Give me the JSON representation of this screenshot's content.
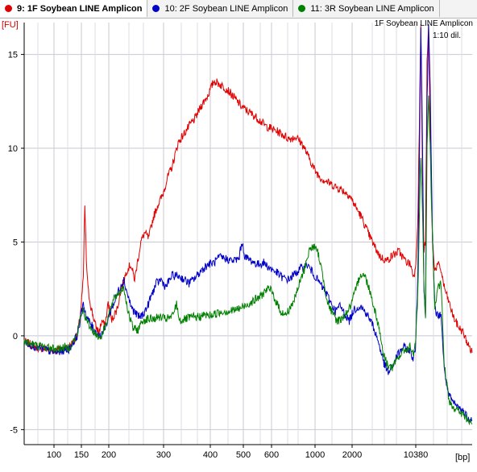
{
  "tabs": [
    {
      "label": "9: 1F Soybean LINE Amplicon",
      "color": "#e00000"
    },
    {
      "label": "10: 2F Soybean LINE Amplicon",
      "color": "#0000c8"
    },
    {
      "label": "11: 3R Soybean LINE Amplicon",
      "color": "#008000"
    }
  ],
  "chart_data": {
    "type": "line",
    "ylabel": "[FU]",
    "xlabel": "[bp]",
    "annotation": [
      "1F Soybean LINE Amplicon",
      "1:10 dil."
    ],
    "ylim": [
      -5.8,
      16.7
    ],
    "y_ticks": [
      15,
      10,
      5,
      0,
      -5
    ],
    "x_tick_labels": [
      "100",
      "150",
      "200",
      "300",
      "400",
      "500",
      "600",
      "1000",
      "2000",
      "10380"
    ],
    "grid": true,
    "series": [
      {
        "name": "9: 1F Soybean LINE Amplicon",
        "color": "#e00000",
        "points": [
          [
            0,
            -0.3
          ],
          [
            15,
            -0.6
          ],
          [
            40,
            -0.8
          ],
          [
            58,
            -0.6
          ],
          [
            68,
            0
          ],
          [
            72,
            1
          ],
          [
            76,
            3
          ],
          [
            78,
            7
          ],
          [
            80,
            4
          ],
          [
            82,
            2.5
          ],
          [
            86,
            1.5
          ],
          [
            92,
            0.5
          ],
          [
            96,
            0.2
          ],
          [
            100,
            0.8
          ],
          [
            104,
            0.5
          ],
          [
            108,
            1.8
          ],
          [
            112,
            0.8
          ],
          [
            120,
            1.5
          ],
          [
            125,
            2.5
          ],
          [
            132,
            3.5
          ],
          [
            137,
            3.8
          ],
          [
            142,
            3.0
          ],
          [
            146,
            4.0
          ],
          [
            150,
            5.0
          ],
          [
            155,
            5.5
          ],
          [
            160,
            5.2
          ],
          [
            166,
            6.3
          ],
          [
            172,
            7.0
          ],
          [
            178,
            7.5
          ],
          [
            184,
            8.4
          ],
          [
            190,
            9.0
          ],
          [
            198,
            10.3
          ],
          [
            206,
            10.8
          ],
          [
            214,
            11.3
          ],
          [
            220,
            11.6
          ],
          [
            228,
            12.3
          ],
          [
            236,
            12.8
          ],
          [
            244,
            13.6
          ],
          [
            252,
            13.4
          ],
          [
            262,
            13.1
          ],
          [
            272,
            12.6
          ],
          [
            280,
            12.2
          ],
          [
            290,
            11.9
          ],
          [
            300,
            11.6
          ],
          [
            310,
            11.2
          ],
          [
            320,
            11.0
          ],
          [
            330,
            10.8
          ],
          [
            340,
            10.5
          ],
          [
            350,
            10.6
          ],
          [
            358,
            10.2
          ],
          [
            366,
            9.5
          ],
          [
            374,
            8.8
          ],
          [
            382,
            8.4
          ],
          [
            390,
            8.2
          ],
          [
            398,
            8.0
          ],
          [
            408,
            7.8
          ],
          [
            418,
            7.5
          ],
          [
            426,
            6.9
          ],
          [
            434,
            6.3
          ],
          [
            442,
            5.5
          ],
          [
            450,
            4.8
          ],
          [
            458,
            4.2
          ],
          [
            466,
            4.0
          ],
          [
            474,
            4.3
          ],
          [
            482,
            4.5
          ],
          [
            490,
            4.0
          ],
          [
            497,
            3.8
          ],
          [
            500,
            3.2
          ],
          [
            503,
            3.5
          ],
          [
            506,
            6.0
          ],
          [
            508,
            11.0
          ],
          [
            510,
            16.5
          ],
          [
            512,
            9.0
          ],
          [
            514,
            4.5
          ],
          [
            516,
            5.0
          ],
          [
            518,
            14.5
          ],
          [
            520,
            16.5
          ],
          [
            522,
            11.0
          ],
          [
            525,
            5.0
          ],
          [
            528,
            3.5
          ],
          [
            532,
            3.8
          ],
          [
            536,
            3.5
          ],
          [
            540,
            2.6
          ],
          [
            546,
            1.8
          ],
          [
            552,
            1.0
          ],
          [
            558,
            0.5
          ],
          [
            564,
            0.2
          ],
          [
            570,
            -0.4
          ],
          [
            576,
            -0.9
          ]
        ]
      },
      {
        "name": "10: 2F Soybean LINE Amplicon",
        "color": "#0000c8",
        "points": [
          [
            0,
            -0.3
          ],
          [
            15,
            -0.6
          ],
          [
            40,
            -0.9
          ],
          [
            58,
            -0.7
          ],
          [
            68,
            0
          ],
          [
            72,
            0.8
          ],
          [
            76,
            1.8
          ],
          [
            80,
            1.0
          ],
          [
            86,
            0.6
          ],
          [
            92,
            0.2
          ],
          [
            98,
            0.0
          ],
          [
            104,
            0.4
          ],
          [
            110,
            1.2
          ],
          [
            116,
            1.8
          ],
          [
            122,
            2.5
          ],
          [
            128,
            3.0
          ],
          [
            133,
            2.2
          ],
          [
            138,
            1.5
          ],
          [
            143,
            1.2
          ],
          [
            148,
            1.0
          ],
          [
            152,
            1.1
          ],
          [
            158,
            1.5
          ],
          [
            164,
            2.2
          ],
          [
            170,
            2.8
          ],
          [
            176,
            3.0
          ],
          [
            182,
            2.6
          ],
          [
            190,
            3.2
          ],
          [
            198,
            3.2
          ],
          [
            206,
            3.0
          ],
          [
            212,
            2.8
          ],
          [
            220,
            3.1
          ],
          [
            228,
            3.5
          ],
          [
            236,
            3.8
          ],
          [
            244,
            3.9
          ],
          [
            252,
            4.2
          ],
          [
            260,
            4.1
          ],
          [
            268,
            4.0
          ],
          [
            276,
            4.1
          ],
          [
            280,
            5.0
          ],
          [
            284,
            4.2
          ],
          [
            292,
            4.0
          ],
          [
            300,
            3.8
          ],
          [
            308,
            3.9
          ],
          [
            316,
            3.6
          ],
          [
            324,
            3.4
          ],
          [
            332,
            3.1
          ],
          [
            340,
            3.0
          ],
          [
            348,
            3.3
          ],
          [
            356,
            3.6
          ],
          [
            364,
            3.8
          ],
          [
            372,
            3.3
          ],
          [
            380,
            2.8
          ],
          [
            388,
            2.3
          ],
          [
            394,
            1.8
          ],
          [
            400,
            1.3
          ],
          [
            406,
            1.6
          ],
          [
            412,
            1.2
          ],
          [
            418,
            0.8
          ],
          [
            424,
            1.4
          ],
          [
            432,
            1.6
          ],
          [
            440,
            1.2
          ],
          [
            448,
            0.6
          ],
          [
            456,
            -0.4
          ],
          [
            462,
            -1.4
          ],
          [
            468,
            -2.0
          ],
          [
            474,
            -1.6
          ],
          [
            480,
            -1.0
          ],
          [
            488,
            -0.6
          ],
          [
            496,
            -0.8
          ],
          [
            500,
            -1.2
          ],
          [
            503,
            -0.8
          ],
          [
            506,
            3.0
          ],
          [
            508,
            9.0
          ],
          [
            510,
            16.5
          ],
          [
            512,
            11.0
          ],
          [
            514,
            2.5
          ],
          [
            516,
            1.0
          ],
          [
            518,
            12.5
          ],
          [
            520,
            16.5
          ],
          [
            522,
            13.5
          ],
          [
            525,
            5.0
          ],
          [
            528,
            1.5
          ],
          [
            532,
            1.0
          ],
          [
            536,
            1.2
          ],
          [
            540,
            -1.8
          ],
          [
            546,
            -3.2
          ],
          [
            552,
            -3.6
          ],
          [
            558,
            -3.8
          ],
          [
            564,
            -4.0
          ],
          [
            570,
            -4.3
          ],
          [
            576,
            -4.5
          ]
        ]
      },
      {
        "name": "11: 3R Soybean LINE Amplicon",
        "color": "#008000",
        "points": [
          [
            0,
            -0.3
          ],
          [
            15,
            -0.5
          ],
          [
            40,
            -0.7
          ],
          [
            58,
            -0.6
          ],
          [
            68,
            0
          ],
          [
            72,
            0.9
          ],
          [
            76,
            1.4
          ],
          [
            80,
            0.8
          ],
          [
            86,
            0.4
          ],
          [
            92,
            0.1
          ],
          [
            98,
            -0.1
          ],
          [
            104,
            0.5
          ],
          [
            110,
            1.3
          ],
          [
            116,
            2.0
          ],
          [
            122,
            2.3
          ],
          [
            128,
            2.6
          ],
          [
            134,
            1.2
          ],
          [
            140,
            0.4
          ],
          [
            146,
            0.3
          ],
          [
            152,
            0.8
          ],
          [
            158,
            0.9
          ],
          [
            166,
            0.9
          ],
          [
            174,
            1.0
          ],
          [
            182,
            0.9
          ],
          [
            190,
            1.0
          ],
          [
            196,
            1.7
          ],
          [
            200,
            0.8
          ],
          [
            208,
            0.9
          ],
          [
            216,
            1.0
          ],
          [
            224,
            1.0
          ],
          [
            232,
            1.1
          ],
          [
            240,
            1.1
          ],
          [
            248,
            1.2
          ],
          [
            256,
            1.3
          ],
          [
            264,
            1.3
          ],
          [
            272,
            1.4
          ],
          [
            280,
            1.5
          ],
          [
            288,
            1.7
          ],
          [
            296,
            1.9
          ],
          [
            304,
            2.1
          ],
          [
            312,
            2.5
          ],
          [
            318,
            2.4
          ],
          [
            324,
            1.8
          ],
          [
            330,
            1.3
          ],
          [
            336,
            1.1
          ],
          [
            342,
            1.5
          ],
          [
            348,
            2.0
          ],
          [
            354,
            2.8
          ],
          [
            360,
            3.5
          ],
          [
            366,
            4.5
          ],
          [
            372,
            4.8
          ],
          [
            378,
            4.4
          ],
          [
            384,
            3.2
          ],
          [
            390,
            1.8
          ],
          [
            396,
            1.2
          ],
          [
            402,
            0.8
          ],
          [
            408,
            0.9
          ],
          [
            414,
            1.2
          ],
          [
            420,
            1.6
          ],
          [
            426,
            2.4
          ],
          [
            432,
            3.3
          ],
          [
            438,
            3.2
          ],
          [
            444,
            2.5
          ],
          [
            450,
            1.5
          ],
          [
            456,
            0.5
          ],
          [
            462,
            -1.0
          ],
          [
            468,
            -1.6
          ],
          [
            474,
            -1.7
          ],
          [
            480,
            -1.2
          ],
          [
            488,
            -0.8
          ],
          [
            496,
            -0.6
          ],
          [
            500,
            -1.0
          ],
          [
            503,
            -0.4
          ],
          [
            506,
            2.0
          ],
          [
            508,
            6.0
          ],
          [
            510,
            9.5
          ],
          [
            512,
            7.0
          ],
          [
            514,
            2.5
          ],
          [
            516,
            1.0
          ],
          [
            518,
            10.0
          ],
          [
            520,
            13.0
          ],
          [
            522,
            10.0
          ],
          [
            525,
            5.0
          ],
          [
            528,
            1.5
          ],
          [
            532,
            2.5
          ],
          [
            536,
            2.8
          ],
          [
            540,
            -1.5
          ],
          [
            546,
            -3.4
          ],
          [
            552,
            -3.8
          ],
          [
            558,
            -4.0
          ],
          [
            564,
            -4.2
          ],
          [
            570,
            -4.5
          ],
          [
            576,
            -4.7
          ]
        ]
      }
    ]
  }
}
